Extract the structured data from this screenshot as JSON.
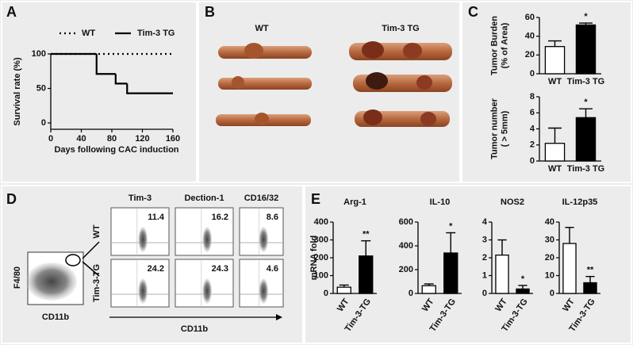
{
  "panel_labels": [
    "A",
    "B",
    "C",
    "D",
    "E"
  ],
  "photos": {
    "labels": [
      "WT",
      "Tim-3 TG"
    ]
  },
  "flow": {
    "y_label": "F4/80",
    "x_label": "CD11b",
    "markers": [
      "Tim-3",
      "Dection-1",
      "CD16/32"
    ],
    "groups": [
      "WT",
      "Tim-3-TG"
    ],
    "percentages": [
      [
        11.4,
        16.2,
        8.6
      ],
      [
        24.2,
        24.3,
        4.6
      ]
    ],
    "axis_label": "CD11b"
  },
  "chart_data": [
    {
      "type": "step",
      "ylabel": "Survival rate (%)",
      "xlabel": "Days following CAC induction",
      "xlim": [
        0,
        160
      ],
      "xticks": [
        0,
        40,
        80,
        120,
        160
      ],
      "ylim": [
        0,
        100
      ],
      "yticks": [
        0,
        50,
        100
      ],
      "series": [
        {
          "name": "WT",
          "color": "#000000",
          "dashed": true,
          "x": [
            0,
            160
          ],
          "values": [
            100,
            100
          ]
        },
        {
          "name": "Tim-3 TG",
          "color": "#000000",
          "dashed": false,
          "x": [
            0,
            60,
            85,
            100,
            160
          ],
          "values": [
            100,
            71,
            57,
            43,
            43
          ]
        }
      ]
    },
    {
      "type": "bar",
      "ylabel": [
        "Tumor Burden",
        "(% of Area)"
      ],
      "categories": [
        "WT",
        "Tim-3 TG"
      ],
      "values": [
        29,
        52
      ],
      "errors": [
        6,
        2
      ],
      "colors": [
        "#ffffff",
        "#000000"
      ],
      "ylim": [
        0,
        60
      ],
      "yticks": [
        0,
        20,
        40,
        60
      ],
      "annotation": "*"
    },
    {
      "type": "bar",
      "ylabel": [
        "Tumor number",
        "( > 5mm)"
      ],
      "categories": [
        "WT",
        "Tim-3 TG"
      ],
      "values": [
        2.2,
        5.4
      ],
      "errors": [
        1.9,
        1.1
      ],
      "colors": [
        "#ffffff",
        "#000000"
      ],
      "ylim": [
        0,
        8
      ],
      "yticks": [
        0,
        2,
        4,
        6,
        8
      ],
      "annotation": "*"
    },
    {
      "type": "bar",
      "title": "Arg-1",
      "ylabel": [
        "mRNA fold"
      ],
      "categories": [
        "WT",
        "Tim-3-TG"
      ],
      "values": [
        35,
        210
      ],
      "errors": [
        12,
        85
      ],
      "colors": [
        "#ffffff",
        "#000000"
      ],
      "ylim": [
        0,
        400
      ],
      "yticks": [
        0,
        100,
        200,
        300,
        400
      ],
      "annotation": "**"
    },
    {
      "type": "bar",
      "title": "IL-10",
      "categories": [
        "WT",
        "Tim-3-TG"
      ],
      "values": [
        65,
        340
      ],
      "errors": [
        15,
        170
      ],
      "colors": [
        "#ffffff",
        "#000000"
      ],
      "ylim": [
        0,
        600
      ],
      "yticks": [
        0,
        200,
        400,
        600
      ],
      "annotation": "*"
    },
    {
      "type": "bar",
      "title": "NOS2",
      "categories": [
        "WT",
        "Tim-3-TG"
      ],
      "values": [
        2.15,
        0.25
      ],
      "errors": [
        0.85,
        0.2
      ],
      "colors": [
        "#ffffff",
        "#000000"
      ],
      "ylim": [
        0,
        4
      ],
      "yticks": [
        0,
        1,
        2,
        3,
        4
      ],
      "annotation": "*"
    },
    {
      "type": "bar",
      "title": "IL-12p35",
      "categories": [
        "WT",
        "Tim-3-TG"
      ],
      "values": [
        28,
        6
      ],
      "errors": [
        9,
        3.5
      ],
      "colors": [
        "#ffffff",
        "#000000"
      ],
      "ylim": [
        0,
        40
      ],
      "yticks": [
        0,
        10,
        20,
        30,
        40
      ],
      "annotation": "**"
    }
  ]
}
